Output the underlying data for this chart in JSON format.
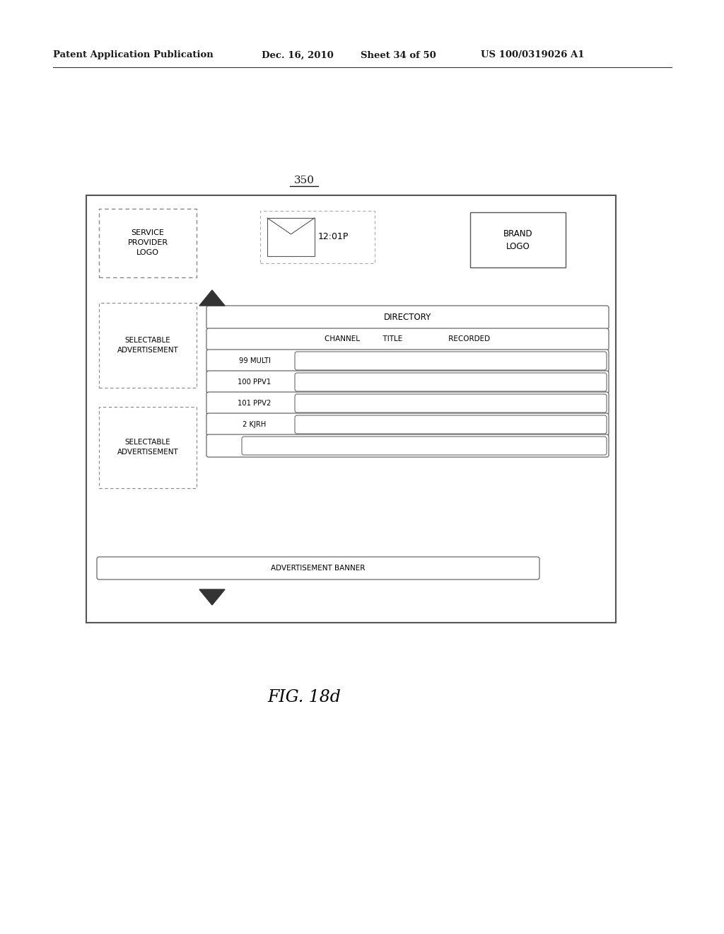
{
  "bg_color": "#ffffff",
  "header_text": "Patent Application Publication",
  "header_date": "Dec. 16, 2010",
  "header_sheet": "Sheet 34 of 50",
  "header_patent": "US 100/0319026 A1",
  "fig_label": "FIG. 18d",
  "diagram_label": "350"
}
